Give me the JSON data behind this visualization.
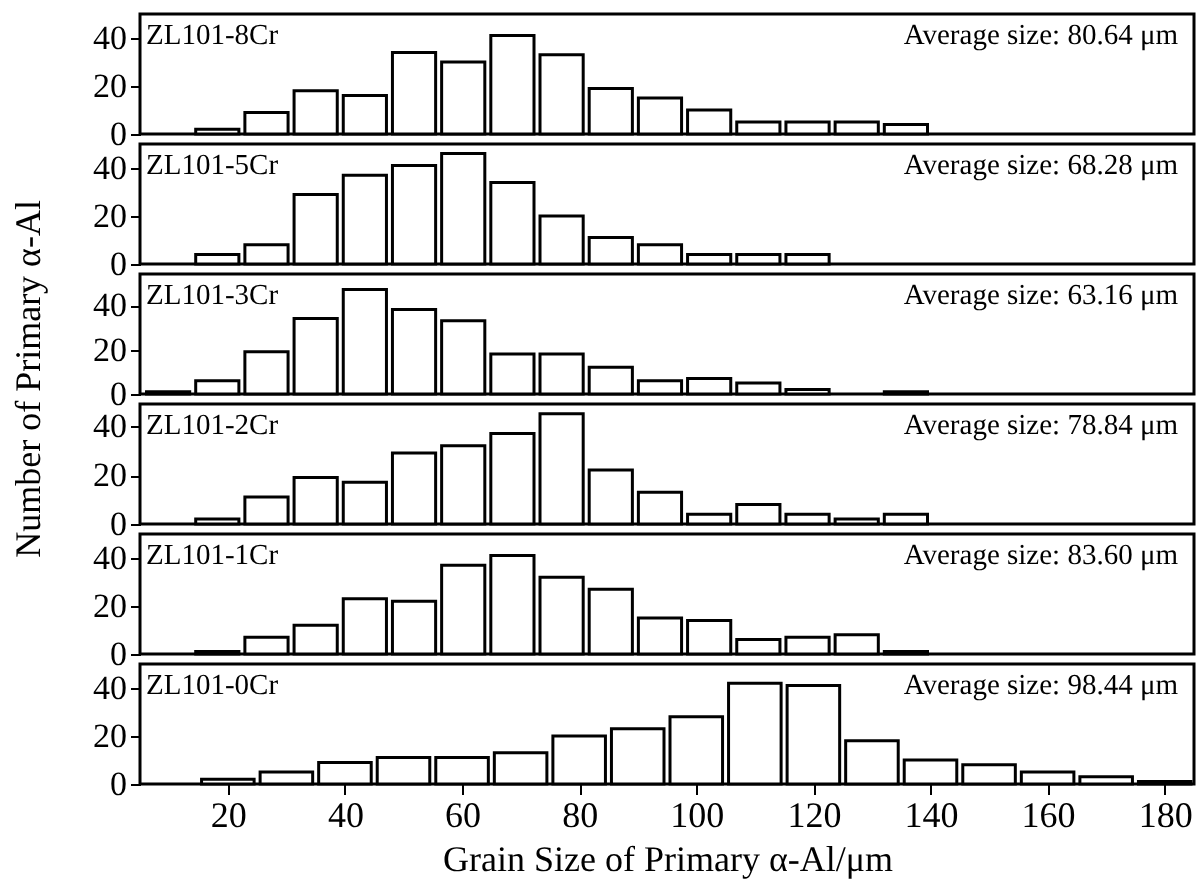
{
  "chart_data": [
    {
      "type": "histogram",
      "annotations": [
        "ZL101-8Cr",
        "Average size: 80.64 μm"
      ],
      "bins": [
        14,
        22.4,
        30.8,
        39.2,
        47.6,
        56,
        64.4,
        72.8,
        81.2,
        89.6,
        98,
        106.4,
        114.8,
        123.2,
        131.6,
        140
      ],
      "values": [
        2,
        9,
        18,
        16,
        34,
        30,
        41,
        33,
        19,
        15,
        10,
        5,
        5,
        5,
        4
      ],
      "color": "#ffffff",
      "xlim": [
        5,
        185
      ],
      "ylim": [
        0,
        50
      ],
      "yticks": [
        0,
        20,
        40
      ],
      "tick_labels": "y",
      "grid": false
    },
    {
      "type": "histogram",
      "annotations": [
        "ZL101-5Cr",
        "Average size: 68.28 μm"
      ],
      "bins": [
        14,
        22.4,
        30.8,
        39.2,
        47.6,
        56,
        64.4,
        72.8,
        81.2,
        89.6,
        98,
        106.4,
        114.8,
        123.2
      ],
      "values": [
        4,
        8,
        29,
        37,
        41,
        46,
        34,
        20,
        11,
        8,
        4,
        4,
        4
      ],
      "color": "#ffffff",
      "xlim": [
        5,
        185
      ],
      "ylim": [
        0,
        50
      ],
      "yticks": [
        0,
        20,
        40
      ],
      "tick_labels": "y",
      "grid": false
    },
    {
      "type": "histogram",
      "annotations": [
        "ZL101-3Cr",
        "Average size: 63.16 μm"
      ],
      "ylabel": "Number of Primary α-Al",
      "bins": [
        5.6,
        14,
        22.4,
        30.8,
        39.2,
        47.6,
        56,
        64.4,
        72.8,
        81.2,
        89.6,
        98,
        106.4,
        114.8,
        123.2,
        131.6,
        140
      ],
      "values": [
        1,
        6,
        19,
        34,
        47,
        38,
        33,
        18,
        18,
        12,
        6,
        7,
        5,
        2,
        null,
        1
      ],
      "color": "#ffffff",
      "xlim": [
        5,
        185
      ],
      "ylim": [
        0,
        54
      ],
      "yticks": [
        0,
        20,
        40
      ],
      "tick_labels": "y",
      "grid": false
    },
    {
      "type": "histogram",
      "annotations": [
        "ZL101-2Cr",
        "Average size: 78.84 μm"
      ],
      "bins": [
        14,
        22.4,
        30.8,
        39.2,
        47.6,
        56,
        64.4,
        72.8,
        81.2,
        89.6,
        98,
        106.4,
        114.8,
        123.2,
        131.6,
        140
      ],
      "values": [
        2,
        11,
        19,
        17,
        29,
        32,
        37,
        45,
        22,
        13,
        4,
        8,
        4,
        2,
        4
      ],
      "color": "#ffffff",
      "xlim": [
        5,
        185
      ],
      "ylim": [
        0,
        49
      ],
      "yticks": [
        0,
        20,
        40
      ],
      "tick_labels": "y",
      "grid": false
    },
    {
      "type": "histogram",
      "annotations": [
        "ZL101-1Cr",
        "Average size: 83.60 μm"
      ],
      "bins": [
        14,
        22.4,
        30.8,
        39.2,
        47.6,
        56,
        64.4,
        72.8,
        81.2,
        89.6,
        98,
        106.4,
        114.8,
        123.2,
        131.6,
        140
      ],
      "values": [
        1,
        7,
        12,
        23,
        22,
        37,
        41,
        32,
        27,
        15,
        14,
        6,
        7,
        8,
        1
      ],
      "color": "#ffffff",
      "xlim": [
        5,
        185
      ],
      "ylim": [
        0,
        50
      ],
      "yticks": [
        0,
        20,
        40
      ],
      "tick_labels": "y",
      "grid": false
    },
    {
      "type": "histogram",
      "annotations": [
        "ZL101-0Cr",
        "Average size: 98.44 μm"
      ],
      "xlabel": "Grain Size of Primary α-Al/μm",
      "bins": [
        15,
        25,
        35,
        45,
        55,
        65,
        75,
        85,
        95,
        105,
        115,
        125,
        135,
        145,
        155,
        165,
        175,
        185
      ],
      "values": [
        2,
        5,
        9,
        11,
        11,
        13,
        20,
        23,
        28,
        42,
        41,
        18,
        10,
        8,
        5,
        3,
        1
      ],
      "color": "#ffffff",
      "xlim": [
        5,
        185
      ],
      "xticks": [
        20,
        40,
        60,
        80,
        100,
        120,
        140,
        160,
        180
      ],
      "ylim": [
        0,
        50
      ],
      "yticks": [
        0,
        20,
        40
      ],
      "grid": false
    }
  ]
}
